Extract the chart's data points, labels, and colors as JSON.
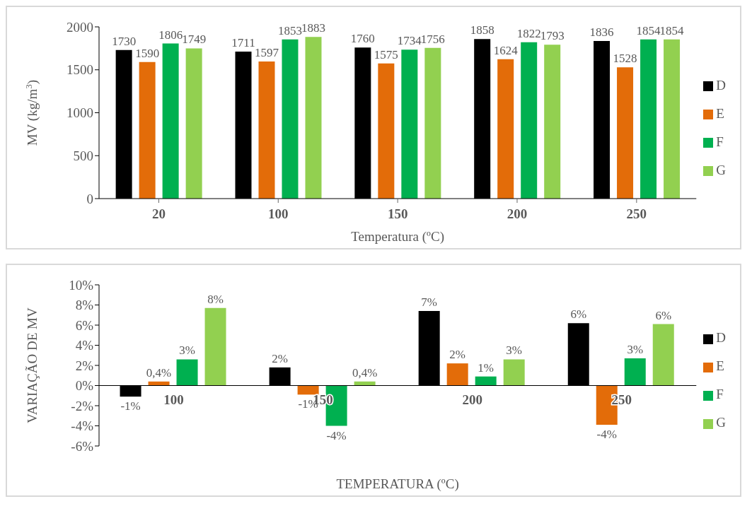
{
  "chart_data": [
    {
      "type": "bar",
      "categories": [
        "20",
        "100",
        "150",
        "200",
        "250"
      ],
      "xlabel": "Temperatura (ºC)",
      "ylabel": "MV (kg/m$^{3}$)",
      "ylim": [
        0,
        2000
      ],
      "yticks": [
        0,
        500,
        1000,
        1500,
        2000
      ],
      "legend": "right",
      "data_labels": true,
      "series": [
        {
          "name": "D",
          "color": "#000000",
          "values": [
            1730,
            1711,
            1760,
            1858,
            1836
          ]
        },
        {
          "name": "E",
          "color": "#e36c09",
          "values": [
            1590,
            1597,
            1575,
            1624,
            1528
          ]
        },
        {
          "name": "F",
          "color": "#00b050",
          "values": [
            1806,
            1853,
            1734,
            1822,
            1854
          ]
        },
        {
          "name": "G",
          "color": "#92d050",
          "values": [
            1749,
            1883,
            1756,
            1793,
            1854
          ]
        }
      ]
    },
    {
      "type": "bar",
      "categories": [
        "100",
        "150",
        "200",
        "250"
      ],
      "xlabel": "TEMPERATURA (ºC)",
      "ylabel": "VARIAÇÃO DE MV",
      "ylim": [
        -6,
        10
      ],
      "yticks": [
        {
          "value": -6,
          "label": "-6%"
        },
        {
          "value": -4,
          "label": "-4%"
        },
        {
          "value": -2,
          "label": "-2%"
        },
        {
          "value": 0,
          "label": "0%"
        },
        {
          "value": 2,
          "label": "2%"
        },
        {
          "value": 4,
          "label": "4%"
        },
        {
          "value": 6,
          "label": "6%"
        },
        {
          "value": 8,
          "label": "8%"
        },
        {
          "value": 10,
          "label": "10%"
        }
      ],
      "legend": "right",
      "series": [
        {
          "name": "D",
          "color": "#000000",
          "values": [
            -1.1,
            1.8,
            7.4,
            6.2
          ],
          "value_labels": [
            "-1%",
            "2%",
            "7%",
            "6%"
          ]
        },
        {
          "name": "E",
          "color": "#e36c09",
          "values": [
            0.4,
            -0.9,
            2.2,
            -3.9
          ],
          "value_labels": [
            "0,4%",
            "-1%",
            "2%",
            "-4%"
          ]
        },
        {
          "name": "F",
          "color": "#00b050",
          "values": [
            2.6,
            -4.0,
            0.9,
            2.7
          ],
          "value_labels": [
            "3%",
            "-4%",
            "1%",
            "3%"
          ]
        },
        {
          "name": "G",
          "color": "#92d050",
          "values": [
            7.7,
            0.4,
            2.6,
            6.1
          ],
          "value_labels": [
            "8%",
            "0,4%",
            "3%",
            "6%"
          ]
        }
      ]
    }
  ]
}
